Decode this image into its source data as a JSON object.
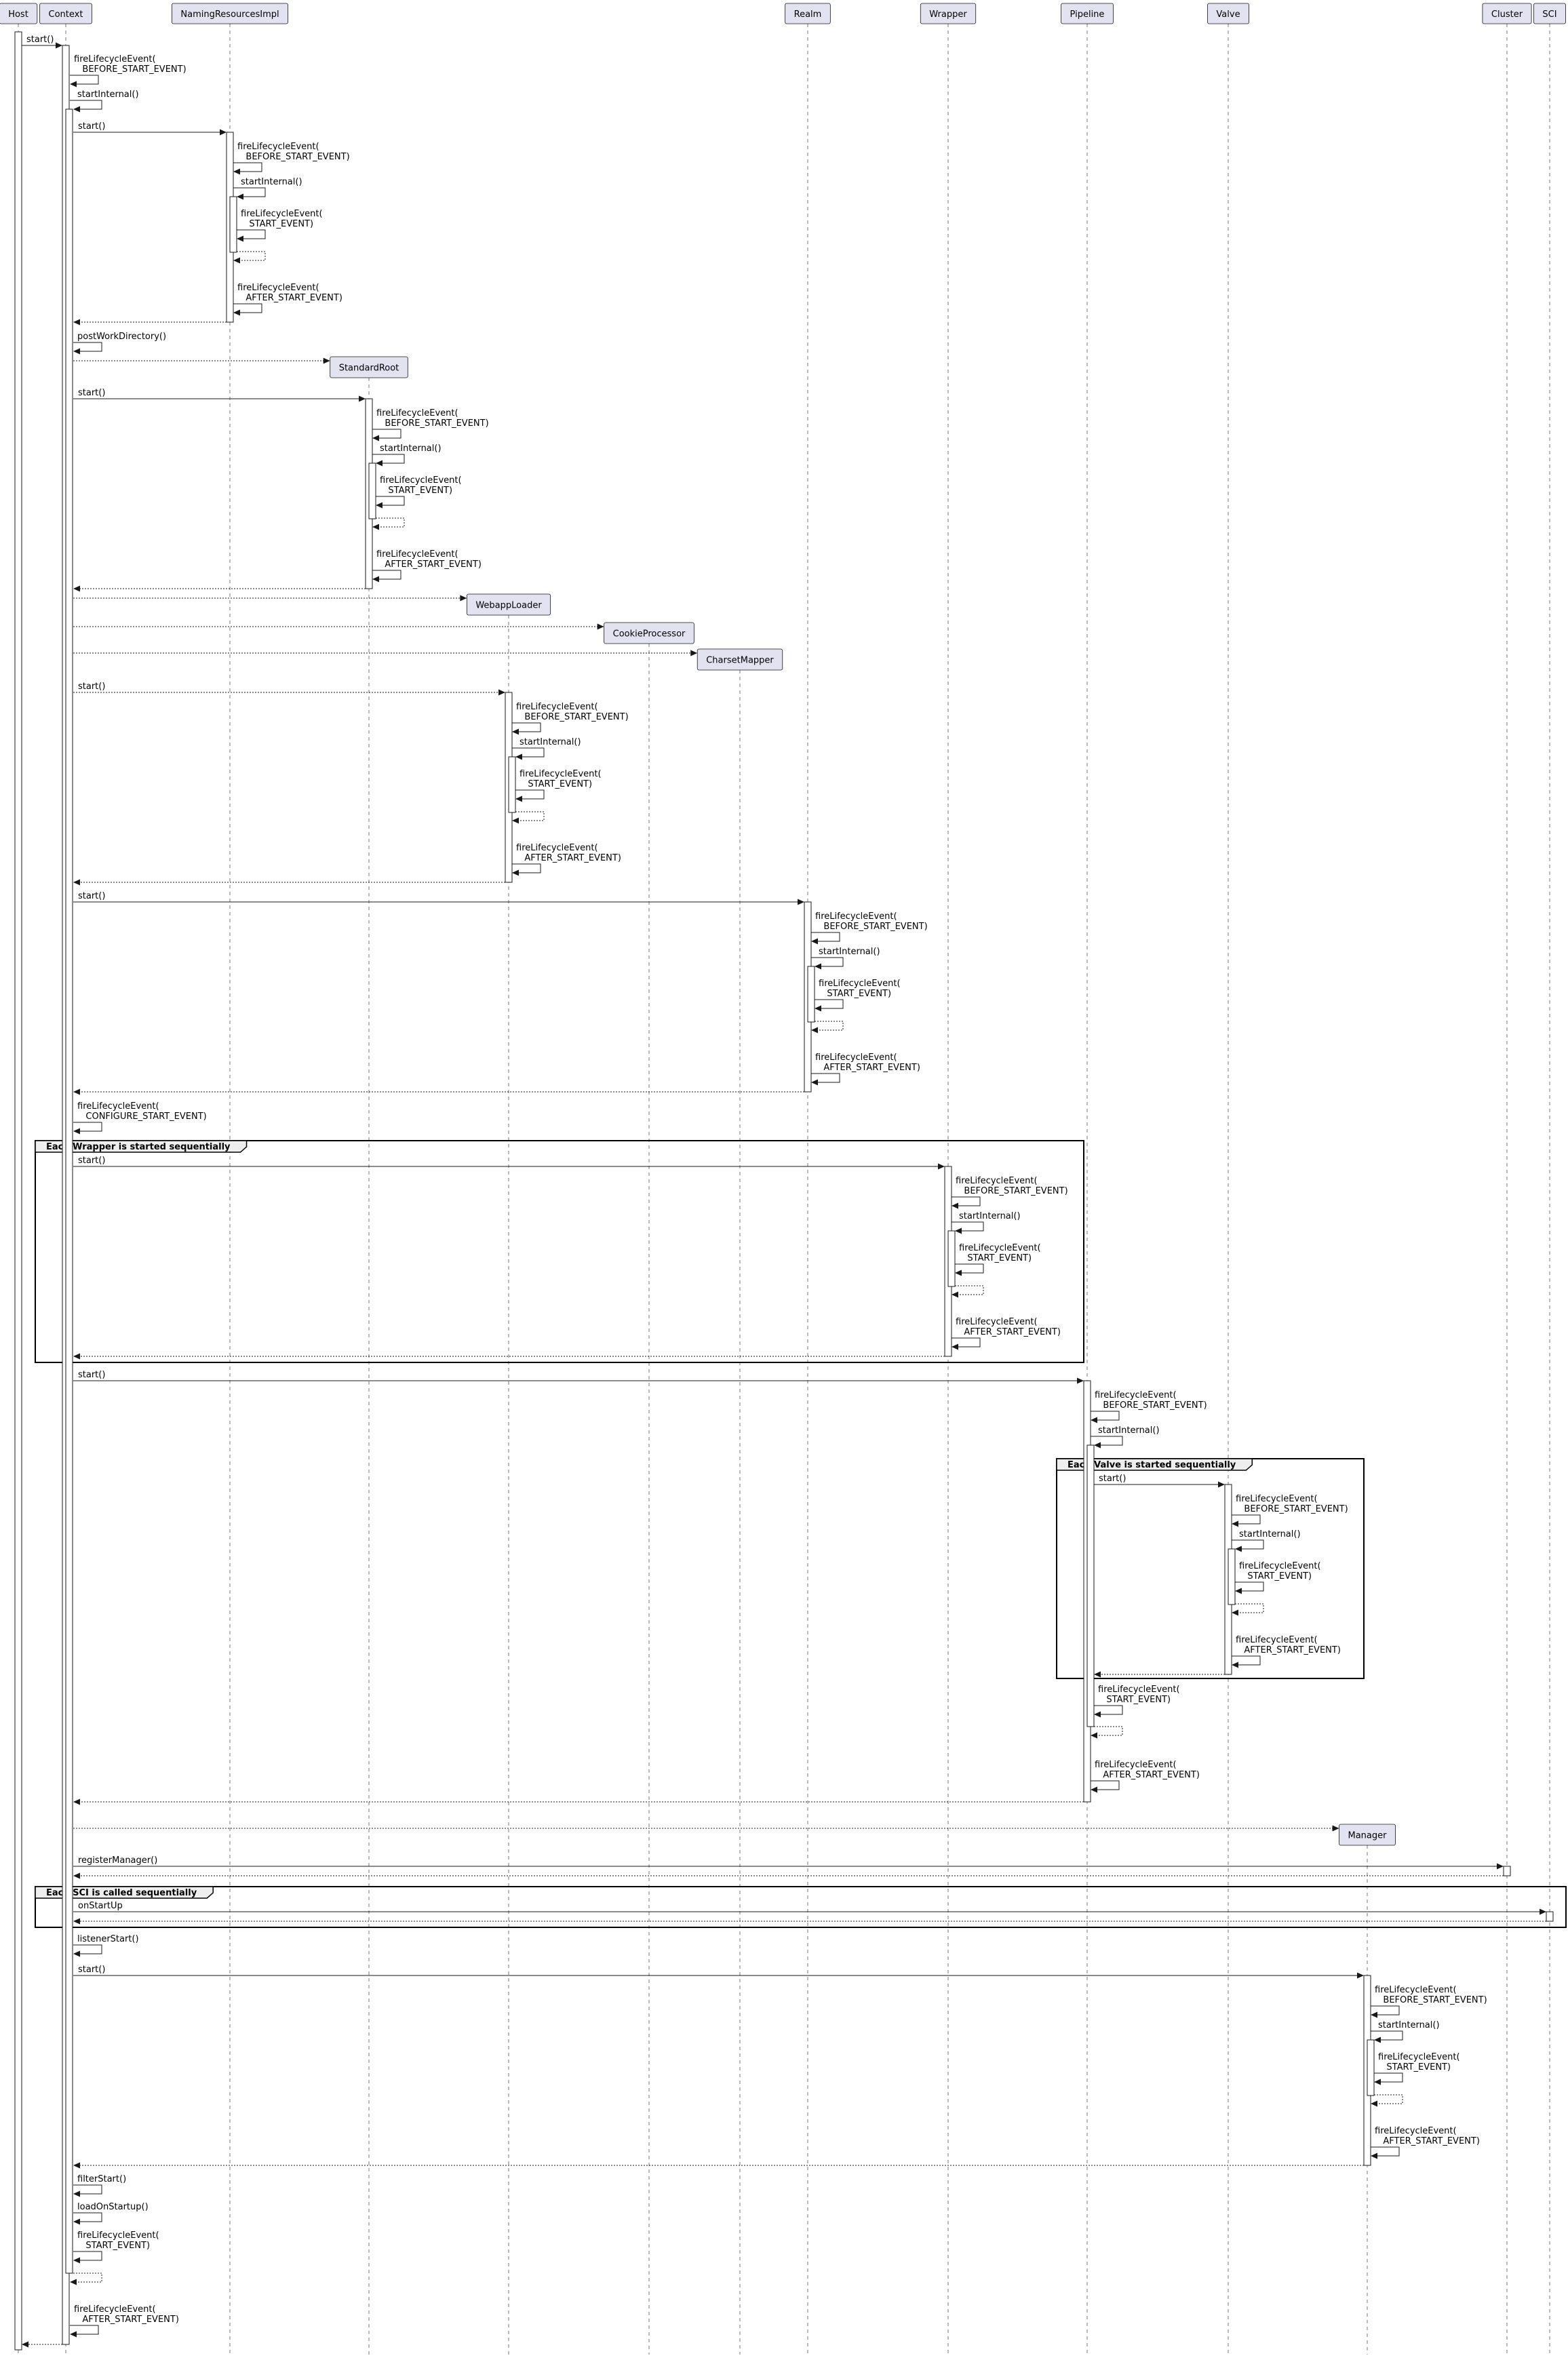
{
  "participants": [
    {
      "id": "Host",
      "name": "Host"
    },
    {
      "id": "Context",
      "name": "Context"
    },
    {
      "id": "NamingResourcesImpl",
      "name": "NamingResourcesImpl"
    },
    {
      "id": "StandardRoot",
      "name": "StandardRoot",
      "created": true
    },
    {
      "id": "WebappLoader",
      "name": "WebappLoader",
      "created": true
    },
    {
      "id": "CookieProcessor",
      "name": "CookieProcessor",
      "created": true
    },
    {
      "id": "CharsetMapper",
      "name": "CharsetMapper",
      "created": true
    },
    {
      "id": "Realm",
      "name": "Realm"
    },
    {
      "id": "Wrapper",
      "name": "Wrapper"
    },
    {
      "id": "Pipeline",
      "name": "Pipeline"
    },
    {
      "id": "Valve",
      "name": "Valve"
    },
    {
      "id": "Manager",
      "name": "Manager",
      "created": true
    },
    {
      "id": "Cluster",
      "name": "Cluster"
    },
    {
      "id": "SCI",
      "name": "SCI"
    }
  ],
  "groups": [
    {
      "label": "Each Wrapper is started sequentially"
    },
    {
      "label": "Each Valve is started sequentially"
    },
    {
      "label": "Each SCI is called sequentially"
    }
  ],
  "colors": {
    "participant_fill": "#E2E2F0",
    "participant_border": "#181818",
    "group_tab_fill": "#EEEEEE",
    "line": "#181818"
  },
  "messages": [
    {
      "from": "Host",
      "to": "Context",
      "label": "start()",
      "line": "solid"
    },
    {
      "from": "Context",
      "to": "Context",
      "label": "fireLifecycleEvent(\n   BEFORE_START_EVENT)",
      "line": "solid"
    },
    {
      "from": "Context",
      "to": "Context",
      "label": "startInternal()",
      "line": "solid"
    },
    {
      "from": "Context",
      "to": "NamingResourcesImpl",
      "label": "start()",
      "line": "solid"
    },
    {
      "from": "NamingResourcesImpl",
      "to": "NamingResourcesImpl",
      "label": "fireLifecycleEvent(\n   BEFORE_START_EVENT)",
      "line": "solid"
    },
    {
      "from": "NamingResourcesImpl",
      "to": "NamingResourcesImpl",
      "label": "startInternal()",
      "line": "solid"
    },
    {
      "from": "NamingResourcesImpl",
      "to": "NamingResourcesImpl",
      "label": "fireLifecycleEvent(\n   START_EVENT)",
      "line": "solid"
    },
    {
      "from": "NamingResourcesImpl",
      "to": "NamingResourcesImpl",
      "label": "",
      "line": "dashed"
    },
    {
      "from": "NamingResourcesImpl",
      "to": "NamingResourcesImpl",
      "label": "fireLifecycleEvent(\n   AFTER_START_EVENT)",
      "line": "solid"
    },
    {
      "from": "NamingResourcesImpl",
      "to": "Context",
      "label": "",
      "line": "dashed"
    },
    {
      "from": "Context",
      "to": "Context",
      "label": "postWorkDirectory()",
      "line": "solid"
    },
    {
      "from": "Context",
      "to": "StandardRoot",
      "label": "",
      "line": "dashed",
      "create": true
    },
    {
      "from": "Context",
      "to": "StandardRoot",
      "label": "start()",
      "line": "solid"
    },
    {
      "from": "StandardRoot",
      "to": "StandardRoot",
      "label": "fireLifecycleEvent(\n   BEFORE_START_EVENT)",
      "line": "solid"
    },
    {
      "from": "StandardRoot",
      "to": "StandardRoot",
      "label": "startInternal()",
      "line": "solid"
    },
    {
      "from": "StandardRoot",
      "to": "StandardRoot",
      "label": "fireLifecycleEvent(\n   START_EVENT)",
      "line": "solid"
    },
    {
      "from": "StandardRoot",
      "to": "StandardRoot",
      "label": "",
      "line": "dashed"
    },
    {
      "from": "StandardRoot",
      "to": "StandardRoot",
      "label": "fireLifecycleEvent(\n   AFTER_START_EVENT)",
      "line": "solid"
    },
    {
      "from": "StandardRoot",
      "to": "Context",
      "label": "",
      "line": "dashed"
    },
    {
      "from": "Context",
      "to": "WebappLoader",
      "label": "",
      "line": "dashed",
      "create": true
    },
    {
      "from": "Context",
      "to": "CookieProcessor",
      "label": "",
      "line": "dashed",
      "create": true
    },
    {
      "from": "Context",
      "to": "CharsetMapper",
      "label": "",
      "line": "dashed",
      "create": true
    },
    {
      "from": "Context",
      "to": "WebappLoader",
      "label": "start()",
      "line": "dashed"
    },
    {
      "from": "WebappLoader",
      "to": "WebappLoader",
      "label": "fireLifecycleEvent(\n   BEFORE_START_EVENT)",
      "line": "solid"
    },
    {
      "from": "WebappLoader",
      "to": "WebappLoader",
      "label": "startInternal()",
      "line": "solid"
    },
    {
      "from": "WebappLoader",
      "to": "WebappLoader",
      "label": "fireLifecycleEvent(\n   START_EVENT)",
      "line": "solid"
    },
    {
      "from": "WebappLoader",
      "to": "WebappLoader",
      "label": "",
      "line": "dashed"
    },
    {
      "from": "WebappLoader",
      "to": "WebappLoader",
      "label": "fireLifecycleEvent(\n   AFTER_START_EVENT)",
      "line": "solid"
    },
    {
      "from": "WebappLoader",
      "to": "Context",
      "label": "",
      "line": "dashed"
    },
    {
      "from": "Context",
      "to": "Realm",
      "label": "start()",
      "line": "solid"
    },
    {
      "from": "Realm",
      "to": "Realm",
      "label": "fireLifecycleEvent(\n   BEFORE_START_EVENT)",
      "line": "solid"
    },
    {
      "from": "Realm",
      "to": "Realm",
      "label": "startInternal()",
      "line": "solid"
    },
    {
      "from": "Realm",
      "to": "Realm",
      "label": "fireLifecycleEvent(\n   START_EVENT)",
      "line": "solid"
    },
    {
      "from": "Realm",
      "to": "Realm",
      "label": "",
      "line": "dashed"
    },
    {
      "from": "Realm",
      "to": "Realm",
      "label": "fireLifecycleEvent(\n   AFTER_START_EVENT)",
      "line": "solid"
    },
    {
      "from": "Realm",
      "to": "Context",
      "label": "",
      "line": "dashed"
    },
    {
      "from": "Context",
      "to": "Context",
      "label": "fireLifecycleEvent(\n   CONFIGURE_START_EVENT)",
      "line": "solid"
    },
    {
      "from": "Context",
      "to": "Wrapper",
      "label": "start()",
      "line": "solid"
    },
    {
      "from": "Wrapper",
      "to": "Wrapper",
      "label": "fireLifecycleEvent(\n   BEFORE_START_EVENT)",
      "line": "solid"
    },
    {
      "from": "Wrapper",
      "to": "Wrapper",
      "label": "startInternal()",
      "line": "solid"
    },
    {
      "from": "Wrapper",
      "to": "Wrapper",
      "label": "fireLifecycleEvent(\n   START_EVENT)",
      "line": "solid"
    },
    {
      "from": "Wrapper",
      "to": "Wrapper",
      "label": "",
      "line": "dashed"
    },
    {
      "from": "Wrapper",
      "to": "Wrapper",
      "label": "fireLifecycleEvent(\n   AFTER_START_EVENT)",
      "line": "solid"
    },
    {
      "from": "Wrapper",
      "to": "Context",
      "label": "",
      "line": "dashed"
    },
    {
      "from": "Context",
      "to": "Pipeline",
      "label": "start()",
      "line": "solid"
    },
    {
      "from": "Pipeline",
      "to": "Pipeline",
      "label": "fireLifecycleEvent(\n   BEFORE_START_EVENT)",
      "line": "solid"
    },
    {
      "from": "Pipeline",
      "to": "Pipeline",
      "label": "startInternal()",
      "line": "solid"
    },
    {
      "from": "Pipeline",
      "to": "Valve",
      "label": "start()",
      "line": "solid"
    },
    {
      "from": "Valve",
      "to": "Valve",
      "label": "fireLifecycleEvent(\n   BEFORE_START_EVENT)",
      "line": "solid"
    },
    {
      "from": "Valve",
      "to": "Valve",
      "label": "startInternal()",
      "line": "solid"
    },
    {
      "from": "Valve",
      "to": "Valve",
      "label": "fireLifecycleEvent(\n   START_EVENT)",
      "line": "solid"
    },
    {
      "from": "Valve",
      "to": "Valve",
      "label": "",
      "line": "dashed"
    },
    {
      "from": "Valve",
      "to": "Valve",
      "label": "fireLifecycleEvent(\n   AFTER_START_EVENT)",
      "line": "solid"
    },
    {
      "from": "Valve",
      "to": "Pipeline",
      "label": "",
      "line": "dashed"
    },
    {
      "from": "Pipeline",
      "to": "Pipeline",
      "label": "fireLifecycleEvent(\n   START_EVENT)",
      "line": "solid"
    },
    {
      "from": "Pipeline",
      "to": "Pipeline",
      "label": "",
      "line": "dashed"
    },
    {
      "from": "Pipeline",
      "to": "Pipeline",
      "label": "fireLifecycleEvent(\n   AFTER_START_EVENT)",
      "line": "solid"
    },
    {
      "from": "Pipeline",
      "to": "Context",
      "label": "",
      "line": "dashed"
    },
    {
      "from": "Context",
      "to": "Manager",
      "label": "",
      "line": "dashed",
      "create": true
    },
    {
      "from": "Context",
      "to": "Cluster",
      "label": "registerManager()",
      "line": "solid"
    },
    {
      "from": "Cluster",
      "to": "Context",
      "label": "",
      "line": "dashed"
    },
    {
      "from": "Context",
      "to": "SCI",
      "label": "onStartUp",
      "line": "solid"
    },
    {
      "from": "SCI",
      "to": "Context",
      "label": "",
      "line": "dashed"
    },
    {
      "from": "Context",
      "to": "Context",
      "label": "listenerStart()",
      "line": "solid"
    },
    {
      "from": "Context",
      "to": "Manager",
      "label": "start()",
      "line": "solid"
    },
    {
      "from": "Manager",
      "to": "Manager",
      "label": "fireLifecycleEvent(\n   BEFORE_START_EVENT)",
      "line": "solid"
    },
    {
      "from": "Manager",
      "to": "Manager",
      "label": "startInternal()",
      "line": "solid"
    },
    {
      "from": "Manager",
      "to": "Manager",
      "label": "fireLifecycleEvent(\n   START_EVENT)",
      "line": "solid"
    },
    {
      "from": "Manager",
      "to": "Manager",
      "label": "",
      "line": "dashed"
    },
    {
      "from": "Manager",
      "to": "Manager",
      "label": "fireLifecycleEvent(\n   AFTER_START_EVENT)",
      "line": "solid"
    },
    {
      "from": "Manager",
      "to": "Context",
      "label": "",
      "line": "dashed"
    },
    {
      "from": "Context",
      "to": "Context",
      "label": "filterStart()",
      "line": "solid"
    },
    {
      "from": "Context",
      "to": "Context",
      "label": "loadOnStartup()",
      "line": "solid"
    },
    {
      "from": "Context",
      "to": "Context",
      "label": "fireLifecycleEvent(\n   START_EVENT)",
      "line": "solid"
    },
    {
      "from": "Context",
      "to": "Context",
      "label": "",
      "line": "dashed"
    },
    {
      "from": "Context",
      "to": "Context",
      "label": "fireLifecycleEvent(\n   AFTER_START_EVENT)",
      "line": "solid"
    },
    {
      "from": "Context",
      "to": "Host",
      "label": "",
      "line": "dashed"
    }
  ]
}
